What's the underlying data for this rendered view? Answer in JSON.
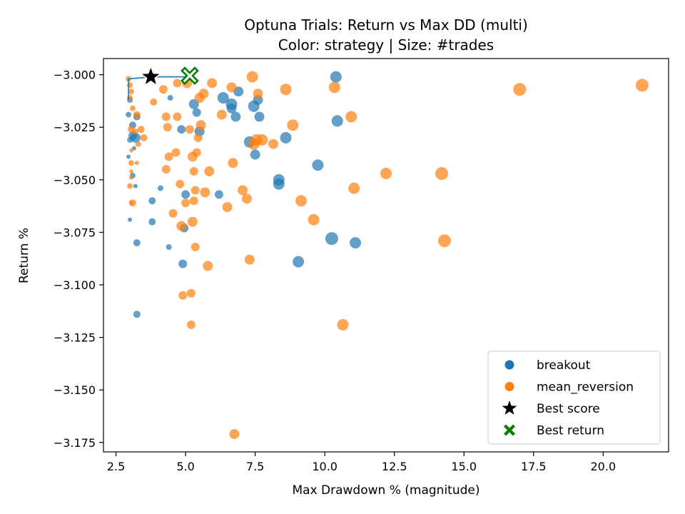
{
  "chart_data": {
    "type": "scatter",
    "title": "Optuna Trials: Return vs Max DD (multi)",
    "subtitle": "Color: strategy | Size: #trades",
    "xlabel": "Max Drawdown % (magnitude)",
    "ylabel": "Return %",
    "xlim": [
      2.05,
      22.35
    ],
    "ylim": [
      -3.1795,
      -2.9923
    ],
    "x_ticks": [
      2.5,
      5.0,
      7.5,
      10.0,
      12.5,
      15.0,
      17.5,
      20.0
    ],
    "x_tick_labels": [
      "2.5",
      "5.0",
      "7.5",
      "10.0",
      "12.5",
      "15.0",
      "17.5",
      "20.0"
    ],
    "y_ticks": [
      -3.0,
      -3.025,
      -3.05,
      -3.075,
      -3.1,
      -3.125,
      -3.15,
      -3.175
    ],
    "y_tick_labels": [
      "−3.000",
      "−3.025",
      "−3.050",
      "−3.075",
      "−3.100",
      "−3.125",
      "−3.150",
      "−3.175"
    ],
    "grid": false,
    "legend_position": "bottom-right",
    "legend": [
      {
        "label": "breakout",
        "marker": "circle",
        "color": "#1f77b4"
      },
      {
        "label": "mean_reversion",
        "marker": "circle",
        "color": "#ff7f0e"
      },
      {
        "label": "Best score",
        "marker": "star",
        "color": "#000000"
      },
      {
        "label": "Best return",
        "marker": "x",
        "color": "#008000"
      }
    ],
    "series": [
      {
        "name": "breakout",
        "color": "#1f77b4",
        "points": [
          [
            3.0,
            -3.012,
            4
          ],
          [
            2.95,
            -3.019,
            4
          ],
          [
            3.1,
            -3.024,
            5
          ],
          [
            3.1,
            -3.029,
            6
          ],
          [
            3.2,
            -3.03,
            7
          ],
          [
            3.0,
            -3.031,
            4
          ],
          [
            2.95,
            -3.039,
            3
          ],
          [
            3.1,
            -3.048,
            4
          ],
          [
            3.2,
            -3.053,
            3
          ],
          [
            3.0,
            -3.069,
            3
          ],
          [
            3.25,
            -3.08,
            5
          ],
          [
            3.25,
            -3.114,
            5
          ],
          [
            3.25,
            -3.02,
            5
          ],
          [
            3.15,
            -3.035,
            3
          ],
          [
            3.8,
            -3.06,
            5
          ],
          [
            3.8,
            -3.07,
            5
          ],
          [
            4.1,
            -3.054,
            4
          ],
          [
            4.4,
            -3.082,
            4
          ],
          [
            4.45,
            -3.011,
            4
          ],
          [
            4.85,
            -3.026,
            6
          ],
          [
            4.9,
            -3.09,
            6
          ],
          [
            4.95,
            -3.073,
            6
          ],
          [
            5.0,
            -3.057,
            6
          ],
          [
            5.3,
            -3.014,
            7
          ],
          [
            5.4,
            -3.018,
            6
          ],
          [
            5.5,
            -3.027,
            7
          ],
          [
            6.2,
            -3.057,
            6
          ],
          [
            6.35,
            -3.011,
            8
          ],
          [
            6.65,
            -3.014,
            8
          ],
          [
            6.65,
            -3.016,
            7
          ],
          [
            6.8,
            -3.02,
            7
          ],
          [
            6.9,
            -3.008,
            7
          ],
          [
            7.3,
            -3.032,
            8
          ],
          [
            7.45,
            -3.015,
            8
          ],
          [
            7.5,
            -3.038,
            7
          ],
          [
            7.6,
            -3.012,
            7
          ],
          [
            7.65,
            -3.02,
            7
          ],
          [
            8.35,
            -3.05,
            8
          ],
          [
            8.35,
            -3.052,
            8
          ],
          [
            8.6,
            -3.03,
            8
          ],
          [
            9.05,
            -3.089,
            8
          ],
          [
            9.75,
            -3.043,
            8
          ],
          [
            10.25,
            -3.078,
            9
          ],
          [
            10.4,
            -3.001,
            8
          ],
          [
            10.45,
            -3.022,
            8
          ],
          [
            11.1,
            -3.08,
            8
          ]
        ]
      },
      {
        "name": "mean_reversion",
        "color": "#ff7f0e",
        "points": [
          [
            2.95,
            -3.002,
            4
          ],
          [
            3.0,
            -3.005,
            4
          ],
          [
            3.05,
            -3.008,
            4
          ],
          [
            3.0,
            -3.011,
            4
          ],
          [
            3.1,
            -3.016,
            4
          ],
          [
            3.25,
            -3.019,
            5
          ],
          [
            3.05,
            -3.026,
            5
          ],
          [
            3.2,
            -3.027,
            4
          ],
          [
            3.3,
            -3.033,
            4
          ],
          [
            3.05,
            -3.036,
            3
          ],
          [
            3.05,
            -3.042,
            4
          ],
          [
            3.25,
            -3.042,
            3
          ],
          [
            3.05,
            -3.046,
            3
          ],
          [
            3.05,
            -3.049,
            3
          ],
          [
            3.0,
            -3.053,
            4
          ],
          [
            3.1,
            -3.061,
            5
          ],
          [
            3.05,
            -3.061,
            3
          ],
          [
            3.4,
            -3.026,
            5
          ],
          [
            3.5,
            -3.03,
            5
          ],
          [
            3.85,
            -3.013,
            5
          ],
          [
            4.2,
            -3.007,
            6
          ],
          [
            4.3,
            -3.02,
            6
          ],
          [
            4.35,
            -3.025,
            6
          ],
          [
            4.3,
            -3.045,
            6
          ],
          [
            4.4,
            -3.039,
            6
          ],
          [
            4.55,
            -3.066,
            6
          ],
          [
            4.65,
            -3.037,
            6
          ],
          [
            4.7,
            -3.004,
            6
          ],
          [
            4.7,
            -3.02,
            6
          ],
          [
            4.8,
            -3.052,
            6
          ],
          [
            4.85,
            -3.072,
            7
          ],
          [
            4.9,
            -3.105,
            6
          ],
          [
            5.0,
            -3.061,
            6
          ],
          [
            5.05,
            -3.004,
            7
          ],
          [
            5.15,
            -3.026,
            6
          ],
          [
            5.2,
            -3.104,
            6
          ],
          [
            5.2,
            -3.119,
            6
          ],
          [
            5.25,
            -3.07,
            7
          ],
          [
            5.25,
            -3.039,
            7
          ],
          [
            5.3,
            -3.046,
            6
          ],
          [
            5.3,
            -3.06,
            6
          ],
          [
            5.35,
            -3.082,
            6
          ],
          [
            5.35,
            -3.055,
            6
          ],
          [
            5.4,
            -3.037,
            6
          ],
          [
            5.45,
            -3.03,
            6
          ],
          [
            5.5,
            -3.011,
            7
          ],
          [
            5.55,
            -3.024,
            7
          ],
          [
            5.65,
            -3.009,
            7
          ],
          [
            5.7,
            -3.056,
            7
          ],
          [
            5.8,
            -3.091,
            7
          ],
          [
            5.85,
            -3.046,
            7
          ],
          [
            5.95,
            -3.004,
            7
          ],
          [
            6.3,
            -3.019,
            7
          ],
          [
            6.5,
            -3.063,
            7
          ],
          [
            6.65,
            -3.006,
            7
          ],
          [
            6.7,
            -3.042,
            7
          ],
          [
            6.75,
            -3.171,
            7
          ],
          [
            7.05,
            -3.055,
            7
          ],
          [
            7.2,
            -3.059,
            7
          ],
          [
            7.3,
            -3.088,
            7
          ],
          [
            7.4,
            -3.001,
            8
          ],
          [
            7.45,
            -3.033,
            8
          ],
          [
            7.55,
            -3.031,
            8
          ],
          [
            7.6,
            -3.009,
            7
          ],
          [
            7.75,
            -3.031,
            8
          ],
          [
            8.15,
            -3.033,
            7
          ],
          [
            8.6,
            -3.007,
            8
          ],
          [
            8.85,
            -3.024,
            8
          ],
          [
            9.15,
            -3.06,
            8
          ],
          [
            9.6,
            -3.069,
            8
          ],
          [
            10.35,
            -3.006,
            8
          ],
          [
            10.65,
            -3.119,
            8
          ],
          [
            10.95,
            -3.02,
            8
          ],
          [
            11.05,
            -3.054,
            8
          ],
          [
            12.2,
            -3.047,
            8
          ],
          [
            14.2,
            -3.047,
            9
          ],
          [
            14.3,
            -3.079,
            9
          ],
          [
            17.0,
            -3.007,
            9
          ],
          [
            21.4,
            -3.005,
            9
          ]
        ]
      }
    ],
    "pareto_front": [
      [
        2.95,
        -3.012
      ],
      [
        2.95,
        -3.002
      ],
      [
        3.8,
        -3.001
      ],
      [
        5.15,
        -3.001
      ]
    ],
    "best_score": {
      "x": 3.75,
      "y": -3.001
    },
    "best_return": {
      "x": 5.15,
      "y": -3.0005
    }
  }
}
